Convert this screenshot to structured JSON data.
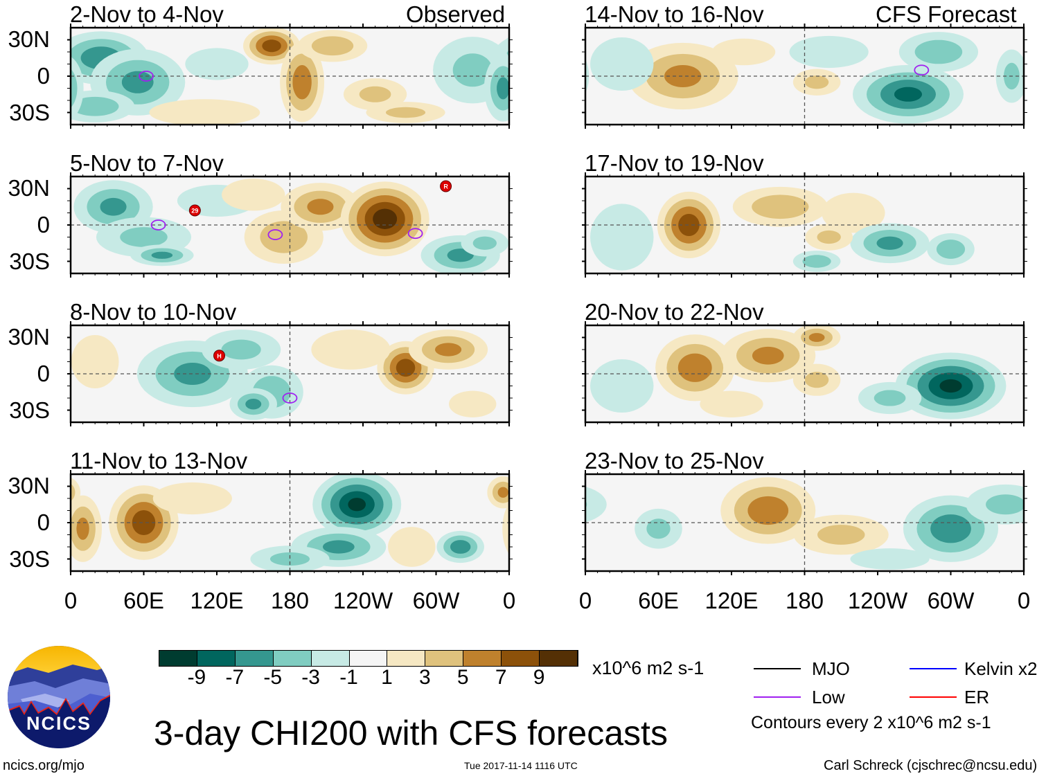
{
  "left_header_right": "Observed",
  "right_header_right": "CFS Forecast",
  "lat_labels": [
    "30N",
    "0",
    "30S"
  ],
  "lon_labels": [
    "0",
    "60E",
    "120E",
    "180",
    "120W",
    "60W",
    "0"
  ],
  "colorbar": {
    "labels": [
      "-9",
      "-7",
      "-5",
      "-3",
      "-1",
      "1",
      "3",
      "5",
      "7",
      "9"
    ],
    "colors": [
      "#003c30",
      "#01665e",
      "#35978f",
      "#80cdc1",
      "#c7eae5",
      "#f5f5f5",
      "#f6e8c3",
      "#dfc27d",
      "#bf812d",
      "#8c510a",
      "#543005"
    ],
    "units": "x10^6 m2 s-1"
  },
  "legend": {
    "mjo": {
      "label": "MJO",
      "color": "#000000"
    },
    "kelvin": {
      "label": "Kelvin x2",
      "color": "#0000ff"
    },
    "low": {
      "label": "Low",
      "color": "#a020f0"
    },
    "er": {
      "label": "ER",
      "color": "#ff0000"
    },
    "contours": "Contours every 2 x10^6 m2 s-1"
  },
  "title": "3-day CHI200 with CFS forecasts",
  "logo_text": "NCICS",
  "footer": {
    "url": "ncics.org/mjo",
    "timestamp": "Tue 2017-11-14 1116 UTC",
    "author": "Carl Schreck (cjschrec@ncsu.edu)"
  },
  "chart_data": {
    "type": "heatmap",
    "variable": "3-day CHI200 anomaly",
    "lon_range": [
      0,
      360
    ],
    "lat_range": [
      -40,
      40
    ],
    "panels": [
      {
        "title": "2-Nov to 4-Nov",
        "source": "Observed",
        "blobs": [
          [
            25,
            15,
            30,
            20,
            -6
          ],
          [
            55,
            -5,
            30,
            25,
            -5
          ],
          [
            20,
            -25,
            25,
            12,
            -4
          ],
          [
            165,
            25,
            18,
            14,
            8
          ],
          [
            190,
            -5,
            14,
            30,
            6
          ],
          [
            215,
            25,
            22,
            12,
            4
          ],
          [
            250,
            -15,
            20,
            12,
            3
          ],
          [
            275,
            -30,
            25,
            8,
            3
          ],
          [
            330,
            5,
            25,
            25,
            -3
          ],
          [
            355,
            -10,
            12,
            25,
            -5
          ],
          [
            110,
            -30,
            35,
            10,
            2
          ],
          [
            120,
            10,
            20,
            12,
            -1.5
          ]
        ],
        "lows": [
          [
            62,
            0
          ]
        ],
        "storms": []
      },
      {
        "title": "5-Nov to 7-Nov",
        "source": "Observed",
        "blobs": [
          [
            35,
            15,
            25,
            20,
            -5
          ],
          [
            60,
            -10,
            30,
            15,
            -3
          ],
          [
            75,
            -25,
            20,
            8,
            -5
          ],
          [
            120,
            20,
            25,
            12,
            -2
          ],
          [
            175,
            -10,
            25,
            20,
            4
          ],
          [
            205,
            15,
            25,
            18,
            5
          ],
          [
            258,
            5,
            28,
            28,
            10
          ],
          [
            320,
            -25,
            25,
            15,
            -5
          ],
          [
            340,
            -15,
            15,
            10,
            -3
          ],
          [
            150,
            25,
            20,
            12,
            2
          ]
        ],
        "lows": [
          [
            72,
            0
          ],
          [
            168,
            -8
          ],
          [
            283,
            -7
          ]
        ],
        "storms": [
          [
            102,
            12,
            "29"
          ],
          [
            308,
            32,
            "R"
          ]
        ]
      },
      {
        "title": "8-Nov to 10-Nov",
        "source": "Observed",
        "blobs": [
          [
            100,
            0,
            35,
            25,
            -5
          ],
          [
            165,
            -15,
            20,
            20,
            -4
          ],
          [
            150,
            -25,
            15,
            12,
            -5
          ],
          [
            140,
            20,
            25,
            15,
            -3
          ],
          [
            275,
            5,
            18,
            20,
            8
          ],
          [
            310,
            20,
            25,
            15,
            5
          ],
          [
            230,
            20,
            25,
            15,
            2
          ],
          [
            330,
            -25,
            15,
            10,
            2
          ],
          [
            20,
            10,
            15,
            20,
            1.5
          ]
        ],
        "lows": [
          [
            180,
            -20
          ]
        ],
        "storms": [
          [
            122,
            15,
            "H"
          ]
        ]
      },
      {
        "title": "11-Nov to 13-Nov",
        "source": "Observed",
        "blobs": [
          [
            60,
            0,
            22,
            28,
            8
          ],
          [
            10,
            -5,
            12,
            25,
            5
          ],
          [
            235,
            15,
            28,
            25,
            -9
          ],
          [
            220,
            -20,
            30,
            15,
            -5
          ],
          [
            320,
            -20,
            15,
            12,
            -6
          ],
          [
            180,
            -30,
            25,
            10,
            -3
          ],
          [
            280,
            -20,
            15,
            15,
            2
          ],
          [
            100,
            20,
            25,
            12,
            1.5
          ],
          [
            355,
            25,
            10,
            12,
            5
          ]
        ],
        "lows": [],
        "storms": []
      },
      {
        "title": "14-Nov to 16-Nov",
        "source": "CFS Forecast",
        "blobs": [
          [
            80,
            0,
            35,
            25,
            5
          ],
          [
            30,
            10,
            20,
            20,
            -2
          ],
          [
            265,
            -15,
            35,
            22,
            -7
          ],
          [
            290,
            20,
            25,
            15,
            -4
          ],
          [
            200,
            20,
            25,
            12,
            -2
          ],
          [
            190,
            -5,
            15,
            10,
            3
          ],
          [
            130,
            20,
            20,
            10,
            2
          ],
          [
            350,
            0,
            10,
            20,
            -3
          ]
        ],
        "lows": [
          [
            276,
            5
          ]
        ],
        "storms": []
      },
      {
        "title": "17-Nov to 19-Nov",
        "source": "CFS Forecast",
        "blobs": [
          [
            85,
            0,
            20,
            25,
            8
          ],
          [
            160,
            15,
            30,
            15,
            4
          ],
          [
            220,
            10,
            20,
            15,
            2
          ],
          [
            250,
            -15,
            25,
            15,
            -5
          ],
          [
            300,
            -20,
            15,
            12,
            -4
          ],
          [
            190,
            -30,
            15,
            8,
            -4
          ],
          [
            30,
            -10,
            20,
            25,
            -2
          ],
          [
            200,
            -10,
            15,
            10,
            3
          ]
        ],
        "lows": [],
        "storms": []
      },
      {
        "title": "20-Nov to 22-Nov",
        "source": "CFS Forecast",
        "blobs": [
          [
            90,
            5,
            25,
            25,
            6
          ],
          [
            150,
            15,
            30,
            20,
            5
          ],
          [
            190,
            30,
            15,
            10,
            5
          ],
          [
            190,
            -5,
            15,
            12,
            3
          ],
          [
            300,
            -10,
            35,
            25,
            -9
          ],
          [
            250,
            -20,
            20,
            12,
            -3
          ],
          [
            30,
            -10,
            20,
            20,
            -2
          ],
          [
            120,
            -25,
            20,
            10,
            1.5
          ]
        ],
        "lows": [],
        "storms": []
      },
      {
        "title": "23-Nov to 25-Nov",
        "source": "CFS Forecast",
        "blobs": [
          [
            150,
            10,
            30,
            25,
            6
          ],
          [
            210,
            -10,
            30,
            15,
            3
          ],
          [
            300,
            -5,
            30,
            25,
            -6
          ],
          [
            60,
            -5,
            15,
            15,
            -3
          ],
          [
            345,
            15,
            25,
            15,
            -3
          ],
          [
            250,
            -30,
            25,
            8,
            -1.5
          ]
        ],
        "lows": [],
        "storms": []
      }
    ]
  }
}
